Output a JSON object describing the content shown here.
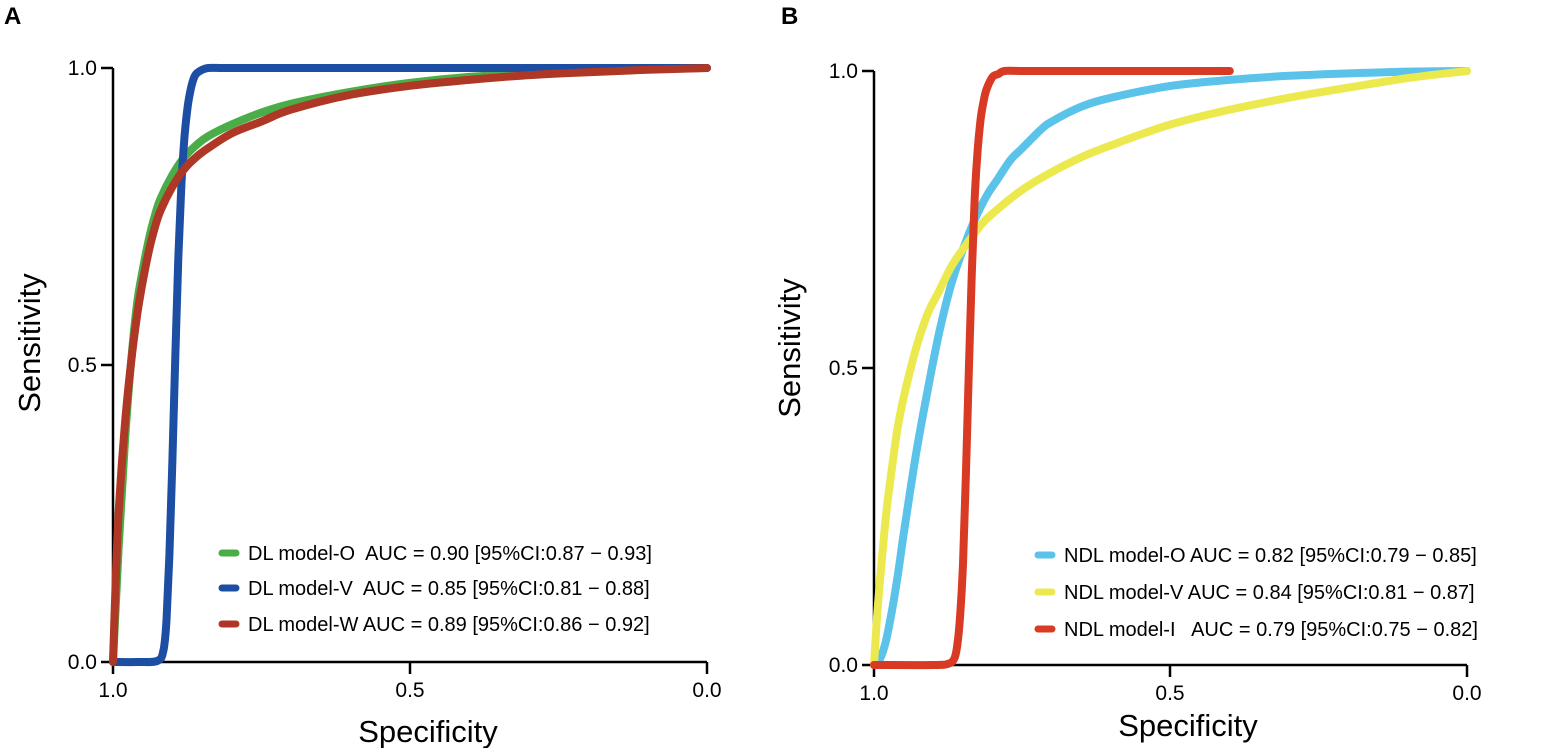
{
  "chart_data": [
    {
      "type": "line",
      "panel": "A",
      "xlabel": "Specificity",
      "ylabel": "Sensitivity",
      "xlim": [
        1.0,
        0.0
      ],
      "ylim": [
        0.0,
        1.0
      ],
      "xticks": [
        "1.0",
        "0.5",
        "0.0"
      ],
      "yticks": [
        "0.0",
        "0.5",
        "1.0"
      ],
      "legend_position": "bottom-right",
      "series": [
        {
          "name": "DL model-O  AUC = 0.90 [95%CI:0.87 − 0.93]",
          "color": "#4aad48",
          "x": [
            1.0,
            0.99,
            0.98,
            0.97,
            0.96,
            0.95,
            0.94,
            0.93,
            0.92,
            0.9,
            0.88,
            0.86,
            0.84,
            0.8,
            0.75,
            0.7,
            0.6,
            0.5,
            0.4,
            0.3,
            0.2,
            0.1,
            0.0
          ],
          "y": [
            0.0,
            0.2,
            0.37,
            0.5,
            0.6,
            0.66,
            0.71,
            0.75,
            0.78,
            0.82,
            0.85,
            0.87,
            0.885,
            0.905,
            0.925,
            0.94,
            0.96,
            0.975,
            0.985,
            0.99,
            0.995,
            0.998,
            1.0
          ]
        },
        {
          "name": "DL model-V  AUC = 0.85 [95%CI:0.81 − 0.88]",
          "color": "#1c4ea3",
          "x": [
            1.0,
            0.96,
            0.925,
            0.915,
            0.91,
            0.905,
            0.9,
            0.895,
            0.89,
            0.885,
            0.88,
            0.875,
            0.87,
            0.865,
            0.86,
            0.85,
            0.84,
            0.82,
            0.8,
            0.7,
            0.5,
            0.3,
            0.0
          ],
          "y": [
            0.0,
            0.0,
            0.002,
            0.02,
            0.07,
            0.18,
            0.34,
            0.52,
            0.68,
            0.8,
            0.88,
            0.93,
            0.96,
            0.98,
            0.99,
            0.997,
            1.0,
            1.0,
            1.0,
            1.0,
            1.0,
            1.0,
            1.0
          ]
        },
        {
          "name": "DL model-W AUC = 0.89 [95%CI:0.86 − 0.92]",
          "color": "#ae3726",
          "x": [
            1.0,
            0.995,
            0.99,
            0.98,
            0.97,
            0.96,
            0.95,
            0.94,
            0.93,
            0.92,
            0.9,
            0.88,
            0.86,
            0.84,
            0.8,
            0.75,
            0.7,
            0.6,
            0.5,
            0.4,
            0.3,
            0.2,
            0.1,
            0.0
          ],
          "y": [
            0.0,
            0.15,
            0.26,
            0.4,
            0.5,
            0.58,
            0.64,
            0.69,
            0.73,
            0.76,
            0.8,
            0.83,
            0.85,
            0.865,
            0.89,
            0.91,
            0.93,
            0.955,
            0.97,
            0.98,
            0.988,
            0.993,
            0.997,
            1.0
          ]
        }
      ]
    },
    {
      "type": "line",
      "panel": "B",
      "xlabel": "Specificity",
      "ylabel": "Sensitivity",
      "xlim": [
        1.0,
        0.0
      ],
      "ylim": [
        0.0,
        1.0
      ],
      "xticks": [
        "1.0",
        "0.5",
        "0.0"
      ],
      "yticks": [
        "0.0",
        "0.5",
        "1.0"
      ],
      "legend_position": "bottom-right",
      "series": [
        {
          "name": "NDL model-O AUC = 0.82 [95%CI:0.79 − 0.85]",
          "color": "#5bc3ea",
          "x": [
            1.0,
            0.99,
            0.98,
            0.97,
            0.96,
            0.95,
            0.93,
            0.91,
            0.89,
            0.87,
            0.85,
            0.83,
            0.81,
            0.79,
            0.77,
            0.75,
            0.72,
            0.7,
            0.65,
            0.6,
            0.5,
            0.4,
            0.3,
            0.2,
            0.1,
            0.0
          ],
          "y": [
            0.0,
            0.01,
            0.04,
            0.09,
            0.15,
            0.22,
            0.35,
            0.46,
            0.56,
            0.64,
            0.7,
            0.75,
            0.79,
            0.82,
            0.85,
            0.87,
            0.9,
            0.915,
            0.94,
            0.955,
            0.975,
            0.985,
            0.992,
            0.996,
            0.999,
            1.0
          ]
        },
        {
          "name": "NDL model-V AUC = 0.84 [95%CI:0.81 − 0.87]",
          "color": "#ece94e",
          "x": [
            1.0,
            0.995,
            0.99,
            0.98,
            0.97,
            0.96,
            0.95,
            0.93,
            0.91,
            0.89,
            0.87,
            0.85,
            0.82,
            0.8,
            0.75,
            0.7,
            0.65,
            0.6,
            0.5,
            0.4,
            0.3,
            0.2,
            0.1,
            0.0
          ],
          "y": [
            0.0,
            0.08,
            0.14,
            0.25,
            0.33,
            0.4,
            0.45,
            0.53,
            0.59,
            0.63,
            0.67,
            0.7,
            0.74,
            0.76,
            0.8,
            0.83,
            0.855,
            0.875,
            0.91,
            0.935,
            0.955,
            0.972,
            0.988,
            1.0
          ]
        },
        {
          "name": "NDL model-I   AUC = 0.79 [95%CI:0.75 − 0.82]",
          "color": "#d93a23",
          "x": [
            1.0,
            0.9,
            0.875,
            0.865,
            0.86,
            0.855,
            0.85,
            0.845,
            0.84,
            0.835,
            0.83,
            0.825,
            0.82,
            0.815,
            0.81,
            0.8,
            0.79,
            0.78,
            0.75,
            0.7,
            0.6,
            0.5,
            0.4
          ],
          "y": [
            0.0,
            0.0,
            0.002,
            0.01,
            0.03,
            0.08,
            0.17,
            0.32,
            0.5,
            0.66,
            0.79,
            0.87,
            0.92,
            0.95,
            0.97,
            0.99,
            0.995,
            1.0,
            1.0,
            1.0,
            1.0,
            1.0,
            1.0
          ]
        }
      ]
    }
  ]
}
